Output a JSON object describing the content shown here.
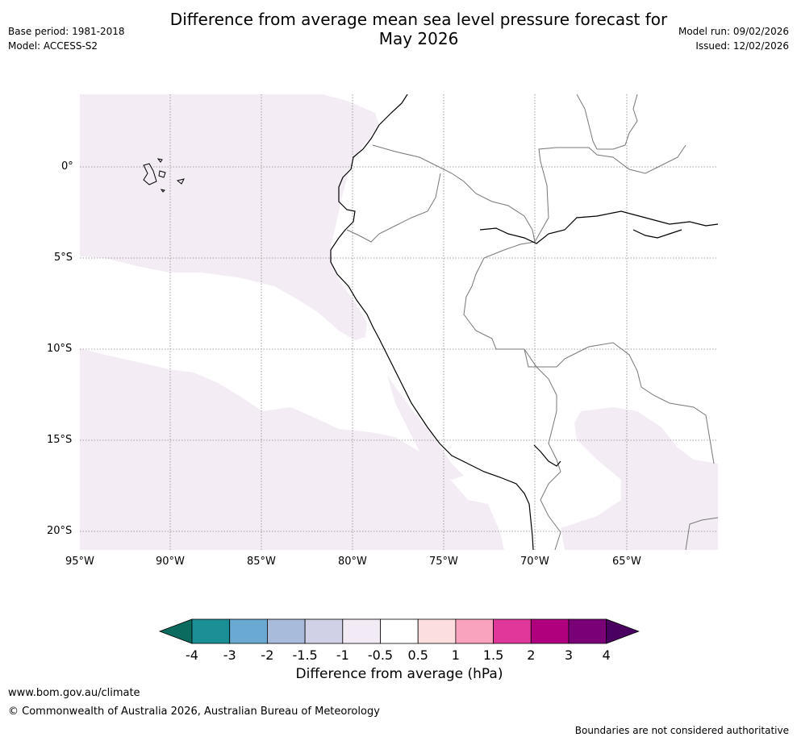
{
  "header": {
    "title_line1": "Difference from average mean sea level pressure forecast for",
    "title_line2": "May 2026",
    "base_period": "Base period: 1981-2018",
    "model": "Model: ACCESS-S2",
    "model_run": "Model run: 09/02/2026",
    "issued": "Issued: 12/02/2026"
  },
  "map": {
    "lat_labels": [
      "0°",
      "5°S",
      "10°S",
      "15°S",
      "20°S"
    ],
    "lon_labels": [
      "95°W",
      "90°W",
      "85°W",
      "80°W",
      "75°W",
      "70°W",
      "65°W"
    ]
  },
  "legend": {
    "ticks": [
      "-4",
      "-3",
      "-2",
      "-1.5",
      "-1",
      "-0.5",
      "0.5",
      "1",
      "1.5",
      "2",
      "3",
      "4"
    ],
    "colors": [
      "#1a9096",
      "#6aaad2",
      "#a8bbdb",
      "#d0d0e6",
      "#f2eaf5",
      "#ffffff",
      "#fddede",
      "#f9a3be",
      "#e0389a",
      "#b0007e",
      "#7a0078"
    ],
    "low_extend_color": "#0c6b5f",
    "high_extend_color": "#4a0060",
    "label": "Difference from average (hPa)"
  },
  "footer": {
    "url": "www.bom.gov.au/climate",
    "copyright": "© Commonwealth of Australia 2026, Australian Bureau of Meteorology",
    "disclaimer": "Boundaries are not considered authoritative"
  }
}
